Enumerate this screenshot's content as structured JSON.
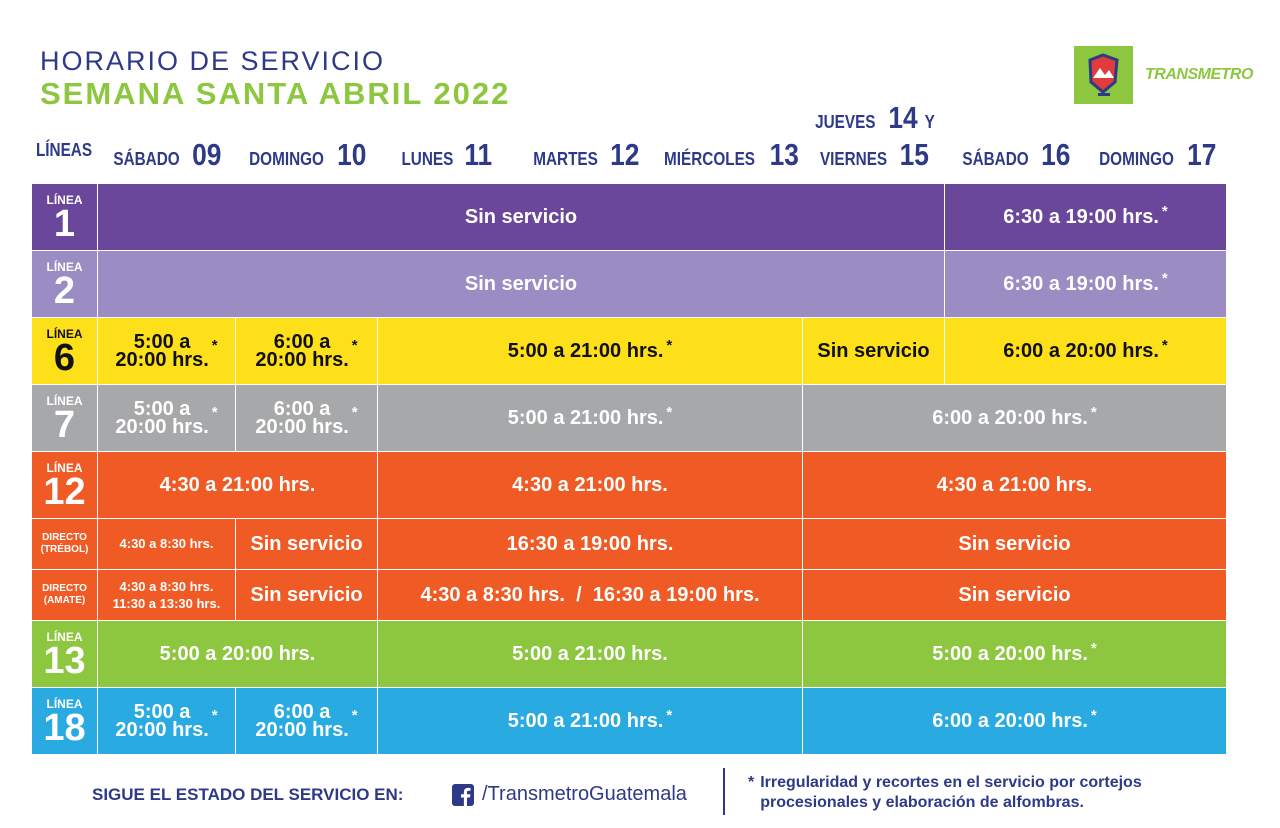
{
  "header": {
    "title": "HORARIO DE SERVICIO",
    "subtitle": "SEMANA SANTA ABRIL 2022",
    "brand": "TRANSMETRO"
  },
  "table": {
    "corner": "LÍNEAS",
    "columns": [
      {
        "name": "SÁBADO",
        "number": "09"
      },
      {
        "name": "DOMINGO",
        "number": "10"
      },
      {
        "name": "LUNES",
        "number": "11"
      },
      {
        "name": "MARTES",
        "number": "12"
      },
      {
        "name": "MIÉRCOLES",
        "number": "13"
      },
      {
        "name": "JUEVES",
        "number": "14",
        "joiner": "Y",
        "name2": "VIERNES",
        "number2": "15"
      },
      {
        "name": "SÁBADO",
        "number": "16"
      },
      {
        "name": "DOMINGO",
        "number": "17"
      }
    ],
    "rows": [
      {
        "label": [
          "LÍNEA",
          "1"
        ],
        "color": "#6a479b",
        "text_color": "#ffffff",
        "cells": [
          {
            "lines": [
              "Sin servicio"
            ],
            "span": 6
          },
          {
            "lines": [
              "6:30 a 19:00 hrs."
            ],
            "star": "*",
            "span": 2
          }
        ]
      },
      {
        "label": [
          "LÍNEA",
          "2"
        ],
        "color": "#9b8dc4",
        "text_color": "#ffffff",
        "cells": [
          {
            "lines": [
              "Sin servicio"
            ],
            "span": 6
          },
          {
            "lines": [
              "6:30 a 19:00 hrs."
            ],
            "star": "*",
            "span": 2
          }
        ]
      },
      {
        "label": [
          "LÍNEA",
          "6"
        ],
        "color": "#fde01a",
        "text_color": "#111111",
        "cells": [
          {
            "lines": [
              "5:00 a",
              "20:00 hrs."
            ],
            "star": "*",
            "span": 1
          },
          {
            "lines": [
              "6:00 a",
              "20:00 hrs."
            ],
            "star": "*",
            "span": 1
          },
          {
            "lines": [
              "5:00 a 21:00 hrs."
            ],
            "star": "*",
            "span": 3
          },
          {
            "lines": [
              "Sin servicio"
            ],
            "span": 1
          },
          {
            "lines": [
              "6:00 a 20:00 hrs."
            ],
            "star": "*",
            "span": 2
          }
        ]
      },
      {
        "label": [
          "LÍNEA",
          "7"
        ],
        "color": "#a7a8aa",
        "text_color": "#ffffff",
        "cells": [
          {
            "lines": [
              "5:00 a",
              "20:00 hrs."
            ],
            "star": "*",
            "span": 1
          },
          {
            "lines": [
              "6:00 a",
              "20:00 hrs."
            ],
            "star": "*",
            "span": 1
          },
          {
            "lines": [
              "5:00 a 21:00 hrs."
            ],
            "star": "*",
            "span": 3
          },
          {
            "lines": [
              "6:00 a 20:00 hrs."
            ],
            "star": "*",
            "span": 3
          }
        ]
      },
      {
        "label": [
          "LÍNEA",
          "12"
        ],
        "color": "#f05a24",
        "text_color": "#ffffff",
        "cells": [
          {
            "lines": [
              "4:30 a 21:00 hrs."
            ],
            "span": 2
          },
          {
            "lines": [
              "4:30 a 21:00 hrs."
            ],
            "span": 3
          },
          {
            "lines": [
              "4:30 a 21:00 hrs."
            ],
            "span": 3
          }
        ]
      },
      {
        "label": [
          "DIRECTO",
          "(TRÉBOL)"
        ],
        "color": "#f05a24",
        "text_color": "#ffffff",
        "cells": [
          {
            "lines": [
              "4:30 a 8:30 hrs."
            ],
            "span": 1
          },
          {
            "lines": [
              "Sin servicio"
            ],
            "span": 1
          },
          {
            "lines": [
              "16:30 a 19:00 hrs."
            ],
            "span": 3
          },
          {
            "lines": [
              "Sin servicio"
            ],
            "span": 3
          }
        ]
      },
      {
        "label": [
          "DIRECTO",
          "(AMATE)"
        ],
        "color": "#f05a24",
        "text_color": "#ffffff",
        "cells": [
          {
            "lines": [
              "4:30 a 8:30 hrs.",
              "11:30 a 13:30 hrs."
            ],
            "span": 1
          },
          {
            "lines": [
              "Sin servicio"
            ],
            "span": 1
          },
          {
            "lines": [
              "4:30 a 8:30 hrs.  /  16:30 a 19:00 hrs."
            ],
            "span": 3
          },
          {
            "lines": [
              "Sin servicio"
            ],
            "span": 3
          }
        ]
      },
      {
        "label": [
          "LÍNEA",
          "13"
        ],
        "color": "#8dc63f",
        "text_color": "#ffffff",
        "cells": [
          {
            "lines": [
              "5:00 a 20:00 hrs."
            ],
            "span": 2
          },
          {
            "lines": [
              "5:00 a 21:00 hrs."
            ],
            "span": 3
          },
          {
            "lines": [
              "5:00 a 20:00 hrs."
            ],
            "star": "*",
            "span": 3
          }
        ]
      },
      {
        "label": [
          "LÍNEA",
          "18"
        ],
        "color": "#29abe2",
        "text_color": "#ffffff",
        "cells": [
          {
            "lines": [
              "5:00 a",
              "20:00 hrs."
            ],
            "star": "*",
            "span": 1
          },
          {
            "lines": [
              "6:00 a",
              "20:00 hrs."
            ],
            "star": "*",
            "span": 1
          },
          {
            "lines": [
              "5:00 a 21:00 hrs."
            ],
            "star": "*",
            "span": 3
          },
          {
            "lines": [
              "6:00 a 20:00 hrs."
            ],
            "star": "*",
            "span": 3
          }
        ]
      }
    ]
  },
  "footer": {
    "follow": "SIGUE EL ESTADO DEL SERVICIO EN:",
    "handle": "/TransmetroGuatemala",
    "note_star": "*",
    "note": [
      "Irregularidad y recortes en el servicio por cortejos",
      "procesionales y elaboración de alfombras."
    ]
  }
}
